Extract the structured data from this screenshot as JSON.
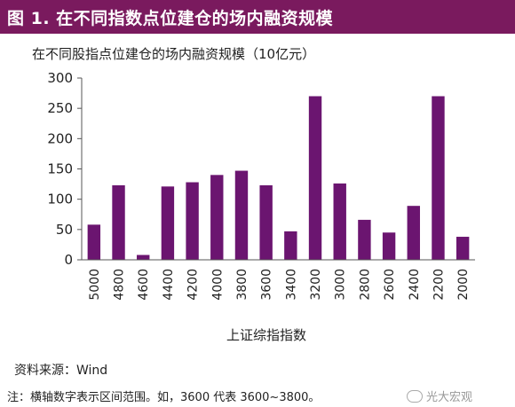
{
  "figure": {
    "header": "图 1. 在不同指数点位建仓的场内融资规模",
    "source": "资料来源：Wind",
    "note": "注：横轴数字表示区间范围。如，3600 代表 3600~3800。",
    "watermark": "光大宏观"
  },
  "colors": {
    "header_bg": "#7a1a5e",
    "bar": "#6b1570"
  },
  "chart_data": {
    "type": "bar",
    "title": "在不同股指点位建仓的场内融资规模（10亿元）",
    "xlabel": "上证综指指数",
    "ylabel": "",
    "ylim": [
      0,
      300
    ],
    "yticks": [
      0,
      50,
      100,
      150,
      200,
      250,
      300
    ],
    "categories": [
      "5000",
      "4800",
      "4600",
      "4400",
      "4200",
      "4000",
      "3800",
      "3600",
      "3400",
      "3200",
      "3000",
      "2800",
      "2600",
      "2400",
      "2200",
      "2000"
    ],
    "values": [
      58,
      123,
      8,
      121,
      128,
      140,
      147,
      123,
      47,
      270,
      126,
      66,
      45,
      89,
      270,
      38
    ]
  }
}
